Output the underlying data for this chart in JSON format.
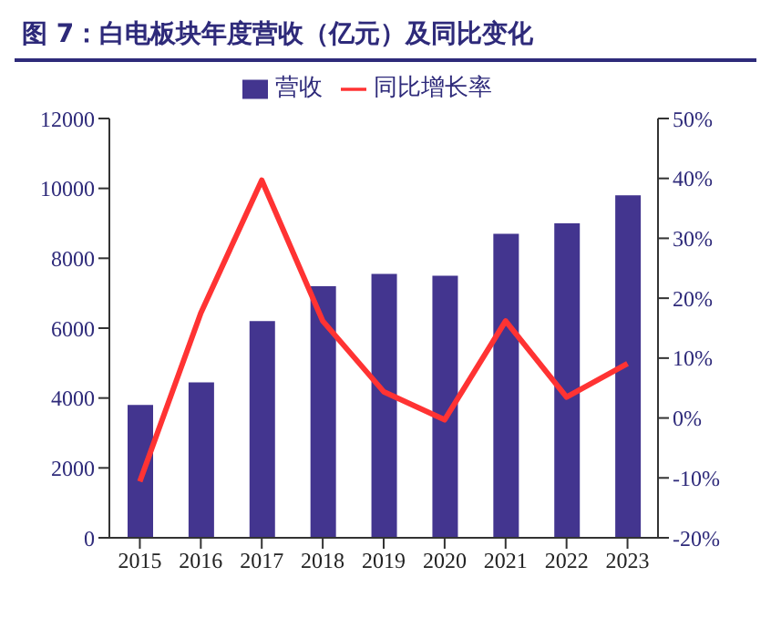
{
  "chart_data": {
    "type": "bar",
    "title": "图 7：白电板块年度营收（亿元）及同比变化",
    "categories": [
      "2015",
      "2016",
      "2017",
      "2018",
      "2019",
      "2020",
      "2021",
      "2022",
      "2023"
    ],
    "series": [
      {
        "name": "营收",
        "color": "#43358f",
        "values": [
          3800,
          4450,
          6200,
          7200,
          7550,
          7500,
          8700,
          9000,
          9800
        ]
      },
      {
        "name": "同比增长率",
        "type": "line",
        "axis": "y2",
        "color": "#ff3333",
        "values": [
          -10.6,
          17.5,
          39.7,
          16.2,
          4.4,
          -0.3,
          16.2,
          3.5,
          9.1
        ]
      }
    ],
    "ylim": [
      0,
      12000
    ],
    "yticks": [
      0,
      2000,
      4000,
      6000,
      8000,
      10000,
      12000
    ],
    "y2lim": [
      -20,
      50
    ],
    "y2ticks": [
      {
        "value": -20,
        "label": "-20%"
      },
      {
        "value": -10,
        "label": "-10%"
      },
      {
        "value": 0,
        "label": "0%"
      },
      {
        "value": 10,
        "label": "10%"
      },
      {
        "value": 20,
        "label": "20%"
      },
      {
        "value": 30,
        "label": "30%"
      },
      {
        "value": 40,
        "label": "40%"
      },
      {
        "value": 50,
        "label": "50%"
      }
    ],
    "legend": "top",
    "grid": false,
    "marker": "none"
  }
}
